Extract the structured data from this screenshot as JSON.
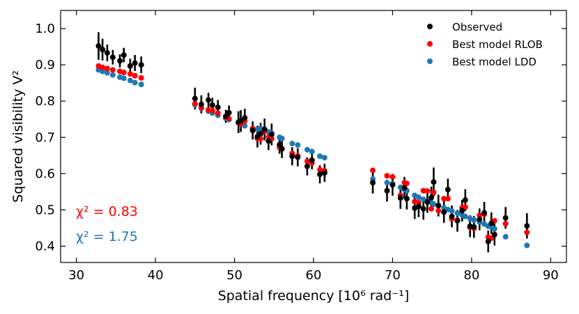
{
  "chart_data": {
    "type": "scatter",
    "title": "",
    "xlabel": "Spatial frequency [10⁶ rad⁻¹]",
    "ylabel": "Squared visibility V²",
    "xlim": [
      28,
      92
    ],
    "ylim": [
      0.355,
      1.05
    ],
    "x_ticks": [
      30,
      40,
      50,
      60,
      70,
      80,
      90
    ],
    "x_tick_labels": [
      "30",
      "40",
      "50",
      "60",
      "70",
      "80",
      "90"
    ],
    "y_ticks": [
      0.4,
      0.5,
      0.6,
      0.7,
      0.8,
      0.9,
      1.0
    ],
    "y_tick_labels": [
      "0.4",
      "0.5",
      "0.6",
      "0.7",
      "0.8",
      "0.9",
      "1.0"
    ],
    "legend": {
      "position": "top-right",
      "entries": [
        {
          "name": "Observed",
          "color": "#000000"
        },
        {
          "name": "Best model RLOB",
          "color": "#ff0000"
        },
        {
          "name": "Best model LDD",
          "color": "#1f77b4"
        }
      ]
    },
    "annotations": [
      {
        "text": "χ² = 0.83",
        "color": "#ff0000"
      },
      {
        "text": "χ² = 1.75",
        "color": "#1f77b4"
      }
    ],
    "colors": {
      "observed": "#000000",
      "rlob": "#ff0000",
      "ldd": "#1f77b4"
    },
    "x": [
      32.8,
      33.3,
      33.9,
      34.6,
      35.5,
      36.0,
      36.8,
      37.4,
      38.2,
      45.0,
      45.8,
      46.7,
      47.2,
      47.9,
      48.9,
      49.3,
      50.5,
      50.8,
      51.3,
      52.3,
      52.9,
      53.3,
      53.8,
      54.3,
      54.7,
      55.7,
      56.0,
      57.3,
      58.0,
      59.2,
      59.8,
      60.8,
      61.4,
      67.5,
      69.3,
      70.0,
      71.0,
      71.5,
      71.8,
      72.8,
      73.3,
      73.9,
      74.4,
      74.9,
      75.2,
      75.8,
      76.5,
      77.0,
      77.5,
      78.2,
      78.8,
      79.2,
      79.8,
      80.3,
      81.0,
      81.6,
      82.1,
      82.5,
      82.9,
      84.3,
      87.0
    ],
    "series": [
      {
        "name": "Observed",
        "y": [
          0.952,
          0.942,
          0.933,
          0.921,
          0.911,
          0.927,
          0.897,
          0.905,
          0.9,
          0.807,
          0.791,
          0.803,
          0.789,
          0.783,
          0.758,
          0.768,
          0.742,
          0.745,
          0.754,
          0.719,
          0.702,
          0.71,
          0.722,
          0.69,
          0.708,
          0.68,
          0.668,
          0.648,
          0.645,
          0.62,
          0.637,
          0.598,
          0.602,
          0.575,
          0.553,
          0.569,
          0.533,
          0.561,
          0.531,
          0.505,
          0.51,
          0.503,
          0.522,
          0.534,
          0.577,
          0.512,
          0.494,
          0.556,
          0.482,
          0.47,
          0.498,
          0.527,
          0.455,
          0.453,
          0.474,
          0.492,
          0.413,
          0.463,
          0.432,
          0.478,
          0.456
        ],
        "err": [
          0.038,
          0.03,
          0.023,
          0.02,
          0.018,
          0.02,
          0.02,
          0.022,
          0.023,
          0.03,
          0.025,
          0.02,
          0.02,
          0.02,
          0.018,
          0.02,
          0.03,
          0.03,
          0.025,
          0.025,
          0.03,
          0.03,
          0.03,
          0.025,
          0.03,
          0.025,
          0.025,
          0.025,
          0.025,
          0.025,
          0.025,
          0.025,
          0.025,
          0.03,
          0.03,
          0.03,
          0.03,
          0.03,
          0.03,
          0.03,
          0.03,
          0.03,
          0.03,
          0.03,
          0.04,
          0.03,
          0.03,
          0.03,
          0.03,
          0.03,
          0.03,
          0.03,
          0.03,
          0.03,
          0.03,
          0.03,
          0.03,
          0.03,
          0.03,
          0.03,
          0.035
        ]
      },
      {
        "name": "Best model RLOB",
        "y": [
          0.897,
          0.893,
          0.89,
          0.886,
          0.882,
          0.879,
          0.875,
          0.87,
          0.864,
          0.793,
          0.782,
          0.776,
          0.774,
          0.767,
          0.756,
          0.752,
          0.74,
          0.737,
          0.745,
          0.724,
          0.697,
          0.696,
          0.716,
          0.701,
          0.696,
          0.672,
          0.669,
          0.656,
          0.649,
          0.634,
          0.629,
          0.611,
          0.608,
          0.609,
          0.594,
          0.591,
          0.54,
          0.575,
          0.573,
          0.523,
          0.52,
          0.553,
          0.552,
          0.503,
          0.548,
          0.498,
          0.531,
          0.531,
          0.475,
          0.472,
          0.506,
          0.508,
          0.452,
          0.449,
          0.485,
          0.488,
          0.425,
          0.422,
          0.47,
          0.462,
          0.438
        ]
      },
      {
        "name": "Best model LDD",
        "y": [
          0.886,
          0.882,
          0.878,
          0.872,
          0.866,
          0.863,
          0.857,
          0.851,
          0.846,
          0.79,
          0.78,
          0.772,
          0.767,
          0.761,
          0.752,
          0.749,
          0.74,
          0.736,
          0.732,
          0.725,
          0.722,
          0.725,
          0.722,
          0.715,
          0.712,
          0.7,
          0.697,
          0.683,
          0.679,
          0.666,
          0.661,
          0.648,
          0.644,
          0.585,
          0.575,
          0.572,
          0.562,
          0.556,
          0.553,
          0.54,
          0.535,
          0.529,
          0.524,
          0.52,
          0.516,
          0.512,
          0.506,
          0.501,
          0.497,
          0.491,
          0.486,
          0.482,
          0.476,
          0.472,
          0.466,
          0.461,
          0.455,
          0.452,
          0.448,
          0.426,
          0.402
        ]
      }
    ]
  }
}
